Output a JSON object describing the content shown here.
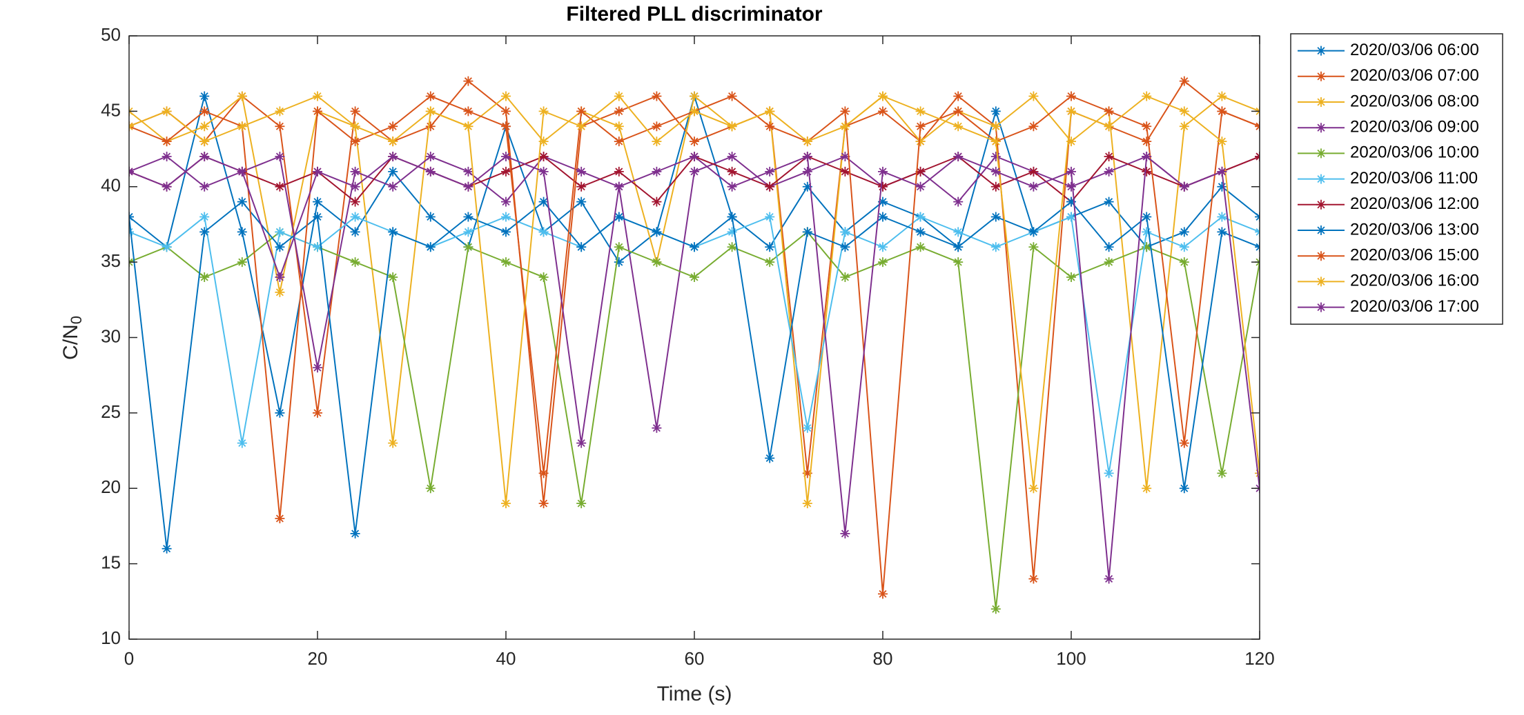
{
  "chart_data": {
    "type": "line",
    "title": "Filtered PLL discriminator",
    "xlabel": "Time (s)",
    "ylabel": {
      "text": "C/N",
      "subscript": "0"
    },
    "marker": "*",
    "grid": false,
    "legend_position": "outside-right-top",
    "xlim": [
      0,
      120
    ],
    "xticks": [
      0,
      20,
      40,
      60,
      80,
      100,
      120
    ],
    "ylim": [
      10,
      50
    ],
    "yticks": [
      10,
      15,
      20,
      25,
      30,
      35,
      40,
      45,
      50
    ],
    "x": [
      0,
      4,
      8,
      12,
      16,
      20,
      24,
      28,
      32,
      36,
      40,
      44,
      48,
      52,
      56,
      60,
      64,
      68,
      72,
      76,
      80,
      84,
      88,
      92,
      96,
      100,
      104,
      108,
      112,
      116,
      120
    ],
    "series": [
      {
        "name": "2020/03/06 06:00",
        "color": "#0072BD",
        "values": [
          38,
          36,
          46,
          37,
          25,
          39,
          37,
          41,
          38,
          36,
          44,
          37,
          39,
          35,
          37,
          46,
          38,
          36,
          40,
          37,
          39,
          38,
          36,
          45,
          37,
          38,
          39,
          36,
          37,
          40,
          38
        ]
      },
      {
        "name": "2020/03/06 07:00",
        "color": "#D95319",
        "values": [
          44,
          45,
          43,
          46,
          44,
          25,
          45,
          43,
          44,
          47,
          45,
          19,
          44,
          45,
          46,
          43,
          44,
          45,
          21,
          44,
          45,
          43,
          46,
          44,
          14,
          45,
          44,
          43,
          47,
          45,
          44
        ]
      },
      {
        "name": "2020/03/06 08:00",
        "color": "#EDB120",
        "values": [
          45,
          43,
          44,
          46,
          33,
          45,
          44,
          23,
          45,
          44,
          46,
          43,
          45,
          44,
          35,
          46,
          44,
          45,
          19,
          44,
          46,
          43,
          45,
          44,
          46,
          43,
          45,
          20,
          44,
          46,
          45
        ]
      },
      {
        "name": "2020/03/06 09:00",
        "color": "#7E2F8E",
        "values": [
          41,
          42,
          40,
          41,
          42,
          28,
          41,
          40,
          42,
          41,
          39,
          42,
          41,
          40,
          24,
          41,
          42,
          40,
          41,
          42,
          40,
          41,
          39,
          42,
          41,
          40,
          41,
          42,
          40,
          41,
          42
        ]
      },
      {
        "name": "2020/03/06 10:00",
        "color": "#77AC30",
        "values": [
          35,
          36,
          34,
          35,
          37,
          36,
          35,
          34,
          20,
          36,
          35,
          34,
          19,
          36,
          35,
          34,
          36,
          35,
          37,
          34,
          35,
          36,
          35,
          12,
          36,
          34,
          35,
          36,
          35,
          21,
          35
        ]
      },
      {
        "name": "2020/03/06 11:00",
        "color": "#4DBEEE",
        "values": [
          37,
          36,
          38,
          23,
          37,
          36,
          38,
          37,
          36,
          37,
          38,
          37,
          36,
          38,
          37,
          36,
          37,
          38,
          24,
          37,
          36,
          38,
          37,
          36,
          37,
          38,
          21,
          37,
          36,
          38,
          37
        ]
      },
      {
        "name": "2020/03/06 12:00",
        "color": "#A2142F",
        "values": [
          41,
          40,
          42,
          41,
          40,
          41,
          39,
          42,
          41,
          40,
          41,
          42,
          40,
          41,
          39,
          42,
          41,
          40,
          42,
          41,
          40,
          41,
          42,
          40,
          41,
          39,
          42,
          41,
          40,
          41,
          42
        ]
      },
      {
        "name": "2020/03/06 13:00",
        "color": "#0072BD",
        "values": [
          38,
          16,
          37,
          39,
          36,
          38,
          17,
          37,
          36,
          38,
          37,
          39,
          36,
          38,
          37,
          36,
          38,
          22,
          37,
          36,
          38,
          37,
          36,
          38,
          37,
          39,
          36,
          38,
          20,
          37,
          36
        ]
      },
      {
        "name": "2020/03/06 15:00",
        "color": "#D95319",
        "values": [
          44,
          43,
          45,
          44,
          18,
          45,
          43,
          44,
          46,
          45,
          44,
          21,
          45,
          43,
          44,
          45,
          46,
          44,
          43,
          45,
          13,
          44,
          45,
          43,
          44,
          46,
          45,
          44,
          23,
          45,
          44
        ]
      },
      {
        "name": "2020/03/06 16:00",
        "color": "#EDB120",
        "values": [
          44,
          45,
          43,
          44,
          45,
          46,
          44,
          43,
          45,
          44,
          19,
          45,
          44,
          46,
          43,
          45,
          44,
          45,
          43,
          44,
          46,
          45,
          44,
          43,
          20,
          45,
          44,
          46,
          45,
          43,
          21
        ]
      },
      {
        "name": "2020/03/06 17:00",
        "color": "#7E2F8E",
        "values": [
          41,
          40,
          42,
          41,
          34,
          41,
          40,
          42,
          41,
          40,
          42,
          41,
          23,
          40,
          41,
          42,
          40,
          41,
          42,
          17,
          41,
          40,
          42,
          41,
          40,
          41,
          14,
          42,
          40,
          41,
          20
        ]
      }
    ]
  }
}
